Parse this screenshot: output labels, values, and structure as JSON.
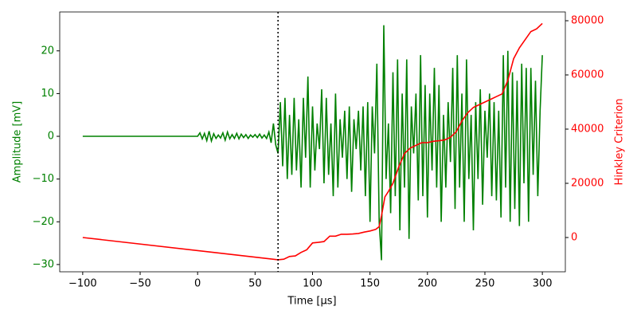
{
  "chart_data": {
    "type": "line",
    "x_label": "Time [μs]",
    "y_label": "Amplitude [mV]",
    "y2_label": "Hinkley Criterion",
    "xlim": [
      -120,
      320
    ],
    "ylim": [
      -31.7,
      29.1
    ],
    "y2lim": [
      -12650,
      83240
    ],
    "xticks": [
      {
        "value": -100,
        "label": "−100"
      },
      {
        "value": -50,
        "label": "−50"
      },
      0,
      50,
      100,
      150,
      200,
      250,
      300
    ],
    "yticks": [
      {
        "value": -30,
        "label": "−30"
      },
      {
        "value": -20,
        "label": "−20"
      },
      {
        "value": -10,
        "label": "−10"
      },
      0,
      10,
      20
    ],
    "y2ticks": [
      0,
      20000,
      40000,
      60000,
      80000
    ],
    "vline": 70,
    "series": [
      {
        "name": "Amplitude",
        "color": "green",
        "x": [
          -100,
          0,
          2,
          4,
          6,
          8,
          10,
          12,
          14,
          16,
          18,
          20,
          22,
          24,
          26,
          28,
          30,
          32,
          34,
          36,
          38,
          40,
          42,
          44,
          46,
          48,
          50,
          52,
          54,
          56,
          58,
          60,
          62,
          64,
          66,
          68,
          70,
          72,
          74,
          76,
          78,
          80,
          82,
          84,
          86,
          88,
          90,
          92,
          94,
          96,
          98,
          100,
          102,
          104,
          106,
          108,
          110,
          112,
          114,
          116,
          118,
          120,
          122,
          124,
          126,
          128,
          130,
          132,
          134,
          136,
          138,
          140,
          142,
          144,
          146,
          148,
          150,
          152,
          154,
          156,
          158,
          160,
          162,
          164,
          166,
          168,
          170,
          172,
          174,
          176,
          178,
          180,
          182,
          184,
          186,
          188,
          190,
          192,
          194,
          196,
          198,
          200,
          202,
          204,
          206,
          208,
          210,
          212,
          214,
          216,
          218,
          220,
          222,
          224,
          226,
          228,
          230,
          232,
          234,
          236,
          238,
          240,
          242,
          244,
          246,
          248,
          250,
          252,
          254,
          256,
          258,
          260,
          262,
          264,
          266,
          268,
          270,
          272,
          274,
          276,
          278,
          280,
          282,
          284,
          286,
          288,
          290,
          292,
          294,
          296,
          298,
          300
        ],
        "values": [
          0,
          0,
          0.8,
          -0.6,
          0.7,
          -1,
          1.2,
          -1.1,
          0.6,
          -0.5,
          0.3,
          -0.4,
          0.8,
          -0.9,
          1,
          -0.6,
          0.4,
          -0.5,
          0.7,
          -0.6,
          0.5,
          -0.3,
          0.4,
          -0.5,
          0.3,
          -0.2,
          0.4,
          -0.3,
          0.5,
          -0.4,
          0.3,
          -0.5,
          1,
          -1.5,
          3,
          -2,
          -4,
          8,
          -7,
          9,
          -10,
          5,
          -9,
          9,
          -8,
          4,
          -12,
          9,
          -5,
          14,
          -12,
          7,
          -8,
          3,
          -3,
          11,
          -11,
          9,
          -9,
          3,
          -14,
          10,
          -12,
          4,
          -5,
          6,
          -10,
          7,
          -13,
          4,
          -3,
          6,
          -8,
          7,
          -14,
          8,
          -20,
          7,
          -4,
          17,
          -20,
          -29,
          26,
          -10,
          3,
          -18,
          15,
          -14,
          18,
          -22,
          10,
          -12,
          18,
          -24,
          7,
          -4,
          10,
          -15,
          19,
          -14,
          12,
          -19,
          10,
          -8,
          16,
          -12,
          12,
          -20,
          5,
          -12,
          8,
          -6,
          16,
          -17,
          19,
          -12,
          10,
          -20,
          18,
          -10,
          5,
          -22,
          8,
          -10,
          11,
          -16,
          6,
          -5,
          10,
          -14,
          8,
          -15,
          6,
          -19,
          19,
          -12,
          20,
          -20,
          15,
          -17,
          13,
          -21,
          17,
          -11,
          16,
          -20,
          16,
          -9,
          13,
          -14,
          6,
          19
        ]
      },
      {
        "name": "Hinkley Criterion",
        "color": "red",
        "axis": "y2",
        "x": [
          -100,
          70,
          75,
          80,
          85,
          90,
          95,
          100,
          105,
          110,
          115,
          120,
          125,
          130,
          135,
          140,
          145,
          150,
          155,
          158,
          160,
          163,
          166,
          170,
          175,
          180,
          185,
          190,
          195,
          200,
          205,
          210,
          215,
          220,
          225,
          230,
          235,
          240,
          245,
          250,
          255,
          260,
          265,
          270,
          275,
          280,
          285,
          290,
          295,
          300
        ],
        "values": [
          0,
          -8200,
          -8000,
          -7000,
          -6800,
          -5500,
          -4500,
          -2000,
          -1800,
          -1500,
          500,
          500,
          1200,
          1200,
          1300,
          1500,
          2000,
          2400,
          3000,
          4000,
          8000,
          15000,
          17000,
          20000,
          26000,
          31000,
          33000,
          34000,
          35000,
          35000,
          35500,
          35700,
          36000,
          37000,
          39000,
          43000,
          46000,
          48000,
          49000,
          50000,
          51000,
          52000,
          53000,
          58000,
          66000,
          70000,
          73000,
          76000,
          77000,
          79000
        ]
      }
    ]
  }
}
